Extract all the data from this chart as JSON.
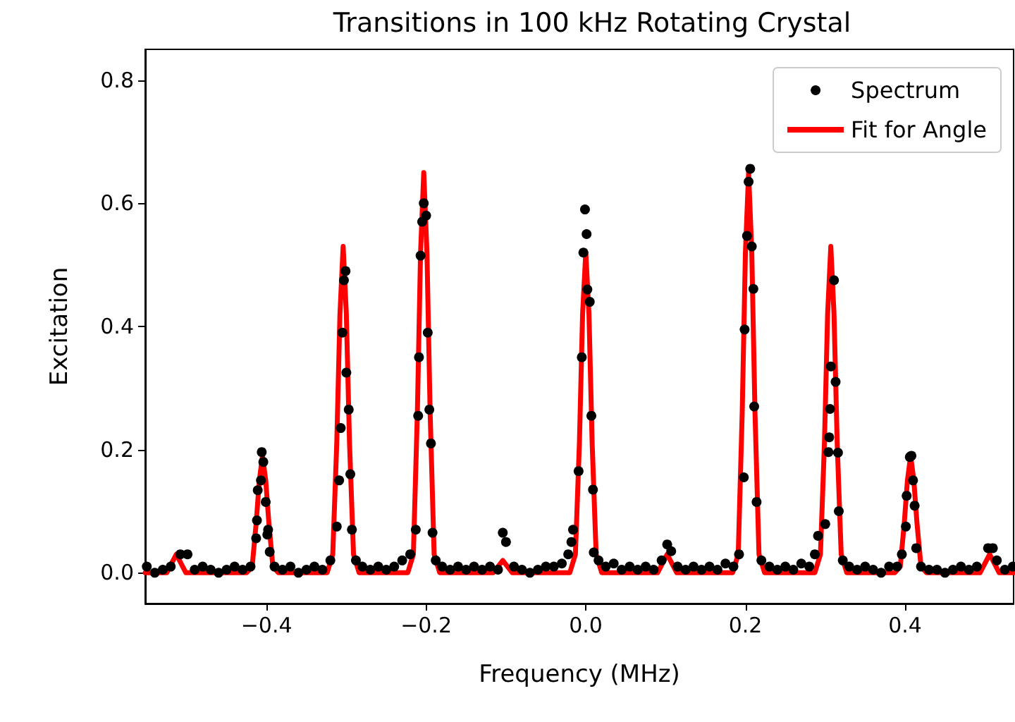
{
  "chart_data": {
    "type": "scatter",
    "title": "Transitions in 100 kHz Rotating Crystal",
    "xlabel": "Frequency (MHz)",
    "ylabel": "Excitation",
    "xlim": [
      -0.552,
      0.536
    ],
    "ylim": [
      -0.05,
      0.85
    ],
    "xticks": [
      {
        "value": -0.4,
        "label": "−0.4"
      },
      {
        "value": -0.2,
        "label": "−0.2"
      },
      {
        "value": 0,
        "label": "0.0"
      },
      {
        "value": 0.2,
        "label": "0.2"
      },
      {
        "value": 0.4,
        "label": "0.4"
      }
    ],
    "yticks": [
      {
        "value": 0,
        "label": "0.0"
      },
      {
        "value": 0.2,
        "label": "0.2"
      },
      {
        "value": 0.4,
        "label": "0.4"
      },
      {
        "value": 0.6,
        "label": "0.6"
      },
      {
        "value": 0.8,
        "label": "0.8"
      }
    ],
    "grid": false,
    "legend": "top right",
    "series": [
      {
        "name": "Spectrum",
        "color": "#000000",
        "marker": "circle",
        "x": [
          -0.55,
          -0.54,
          -0.53,
          -0.52,
          -0.508,
          -0.499,
          -0.49,
          -0.48,
          -0.47,
          -0.46,
          -0.45,
          -0.44,
          -0.43,
          -0.42,
          -0.413,
          -0.412,
          -0.411,
          -0.407,
          -0.406,
          -0.404,
          -0.401,
          -0.399,
          -0.398,
          -0.396,
          -0.39,
          -0.38,
          -0.37,
          -0.36,
          -0.35,
          -0.34,
          -0.33,
          -0.32,
          -0.312,
          -0.309,
          -0.307,
          -0.305,
          -0.303,
          -0.301,
          -0.3,
          -0.297,
          -0.295,
          -0.293,
          -0.288,
          -0.28,
          -0.27,
          -0.26,
          -0.25,
          -0.24,
          -0.23,
          -0.22,
          -0.213,
          -0.21,
          -0.209,
          -0.207,
          -0.205,
          -0.203,
          -0.2,
          -0.198,
          -0.196,
          -0.194,
          -0.192,
          -0.188,
          -0.18,
          -0.17,
          -0.16,
          -0.15,
          -0.14,
          -0.13,
          -0.12,
          -0.11,
          -0.104,
          -0.1,
          -0.09,
          -0.08,
          -0.07,
          -0.06,
          -0.05,
          -0.04,
          -0.03,
          -0.022,
          -0.018,
          -0.016,
          -0.009,
          -0.005,
          -0.003,
          -0.001,
          0.001,
          0.002,
          0.005,
          0.007,
          0.009,
          0.01,
          0.016,
          0.025,
          0.035,
          0.045,
          0.055,
          0.065,
          0.075,
          0.085,
          0.095,
          0.102,
          0.107,
          0.115,
          0.125,
          0.135,
          0.145,
          0.155,
          0.165,
          0.175,
          0.185,
          0.192,
          0.198,
          0.199,
          0.202,
          0.204,
          0.206,
          0.208,
          0.21,
          0.211,
          0.214,
          0.22,
          0.23,
          0.24,
          0.25,
          0.26,
          0.27,
          0.28,
          0.287,
          0.291,
          0.3,
          0.304,
          0.305,
          0.306,
          0.307,
          0.311,
          0.313,
          0.316,
          0.317,
          0.322,
          0.33,
          0.34,
          0.35,
          0.36,
          0.37,
          0.38,
          0.39,
          0.396,
          0.401,
          0.402,
          0.406,
          0.408,
          0.41,
          0.412,
          0.414,
          0.42,
          0.43,
          0.44,
          0.45,
          0.46,
          0.47,
          0.48,
          0.49,
          0.504,
          0.51,
          0.515,
          0.525,
          0.535
        ],
        "values": [
          0.01,
          0,
          0.005,
          0.01,
          0.03,
          0.03,
          0.005,
          0.01,
          0.005,
          0,
          0.005,
          0.01,
          0.005,
          0.01,
          0.056,
          0.085,
          0.134,
          0.15,
          0.196,
          0.18,
          0.115,
          0.062,
          0.07,
          0.034,
          0.01,
          0.005,
          0.01,
          0,
          0.005,
          0.01,
          0.005,
          0.02,
          0.075,
          0.15,
          0.235,
          0.39,
          0.475,
          0.49,
          0.325,
          0.265,
          0.16,
          0.07,
          0.02,
          0.01,
          0.005,
          0.01,
          0.005,
          0.01,
          0.02,
          0.03,
          0.07,
          0.255,
          0.35,
          0.515,
          0.57,
          0.6,
          0.58,
          0.39,
          0.265,
          0.21,
          0.065,
          0.02,
          0.01,
          0.005,
          0.01,
          0.005,
          0.01,
          0.005,
          0.01,
          0.005,
          0.065,
          0.05,
          0.01,
          0.005,
          0,
          0.005,
          0.01,
          0.01,
          0.015,
          0.03,
          0.05,
          0.07,
          0.165,
          0.35,
          0.52,
          0.59,
          0.55,
          0.46,
          0.44,
          0.255,
          0.135,
          0.033,
          0.02,
          0.01,
          0.015,
          0.005,
          0.01,
          0.005,
          0.01,
          0.005,
          0.02,
          0.046,
          0.035,
          0.01,
          0.005,
          0.01,
          0.005,
          0.01,
          0.005,
          0.015,
          0.01,
          0.03,
          0.155,
          0.395,
          0.547,
          0.635,
          0.656,
          0.53,
          0.461,
          0.27,
          0.115,
          0.02,
          0.01,
          0.005,
          0.01,
          0.005,
          0.015,
          0.01,
          0.03,
          0.06,
          0.079,
          0.196,
          0.22,
          0.266,
          0.335,
          0.475,
          0.31,
          0.195,
          0.1,
          0.02,
          0.01,
          0.005,
          0.01,
          0.005,
          0,
          0.01,
          0.01,
          0.03,
          0.075,
          0.125,
          0.188,
          0.19,
          0.15,
          0.109,
          0.04,
          0.01,
          0.005,
          0.005,
          0,
          0.005,
          0.01,
          0.005,
          0.01,
          0.04,
          0.04,
          0.02,
          0.005,
          0.01
        ]
      },
      {
        "name": "Fit for Angle",
        "type": "line",
        "color": "#ff0000",
        "marker": "none",
        "line_style": "solid",
        "x": [
          -0.552,
          -0.525,
          -0.513,
          -0.501,
          -0.425,
          -0.418,
          -0.413,
          -0.409,
          -0.405,
          -0.401,
          -0.397,
          -0.392,
          -0.385,
          -0.324,
          -0.317,
          -0.312,
          -0.308,
          -0.304,
          -0.3,
          -0.296,
          -0.291,
          -0.284,
          -0.223,
          -0.216,
          -0.211,
          -0.207,
          -0.203,
          -0.199,
          -0.195,
          -0.19,
          -0.183,
          -0.116,
          -0.104,
          -0.092,
          -0.02,
          -0.013,
          -0.008,
          -0.004,
          0,
          0.004,
          0.008,
          0.013,
          0.02,
          0.09,
          0.102,
          0.114,
          0.184,
          0.191,
          0.196,
          0.2,
          0.204,
          0.208,
          0.212,
          0.217,
          0.224,
          0.287,
          0.294,
          0.299,
          0.303,
          0.307,
          0.311,
          0.315,
          0.32,
          0.327,
          0.387,
          0.394,
          0.399,
          0.403,
          0.407,
          0.411,
          0.415,
          0.42,
          0.427,
          0.494,
          0.506,
          0.518,
          0.536
        ],
        "values": [
          0,
          0,
          0.03,
          0,
          0,
          0.01,
          0.08,
          0.15,
          0.19,
          0.15,
          0.08,
          0.01,
          0,
          0,
          0.03,
          0.21,
          0.42,
          0.53,
          0.42,
          0.21,
          0.03,
          0,
          0,
          0.03,
          0.26,
          0.52,
          0.65,
          0.52,
          0.26,
          0.03,
          0,
          0,
          0.02,
          0,
          0,
          0.03,
          0.21,
          0.42,
          0.52,
          0.42,
          0.21,
          0.03,
          0,
          0,
          0.03,
          0,
          0,
          0.03,
          0.26,
          0.52,
          0.65,
          0.52,
          0.26,
          0.03,
          0,
          0,
          0.03,
          0.21,
          0.42,
          0.53,
          0.42,
          0.21,
          0.03,
          0,
          0,
          0.01,
          0.08,
          0.15,
          0.19,
          0.15,
          0.08,
          0.01,
          0,
          0,
          0.03,
          0,
          0
        ]
      }
    ]
  }
}
